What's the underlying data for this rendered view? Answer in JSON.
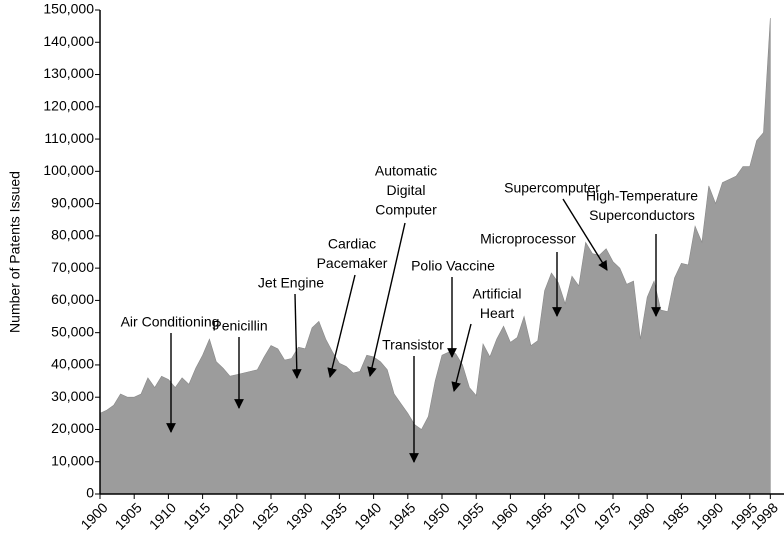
{
  "chart_data": {
    "type": "area",
    "y_label": "Number of Patents Issued",
    "color": "#9c9c9c",
    "x": [
      1900,
      1901,
      1902,
      1903,
      1904,
      1905,
      1906,
      1907,
      1908,
      1909,
      1910,
      1911,
      1912,
      1913,
      1914,
      1915,
      1916,
      1917,
      1918,
      1919,
      1920,
      1921,
      1922,
      1923,
      1924,
      1925,
      1926,
      1927,
      1928,
      1929,
      1930,
      1931,
      1932,
      1933,
      1934,
      1935,
      1936,
      1937,
      1938,
      1939,
      1940,
      1941,
      1942,
      1943,
      1944,
      1945,
      1946,
      1947,
      1948,
      1949,
      1950,
      1951,
      1952,
      1953,
      1954,
      1955,
      1956,
      1957,
      1958,
      1959,
      1960,
      1961,
      1962,
      1963,
      1964,
      1965,
      1966,
      1967,
      1968,
      1969,
      1970,
      1971,
      1972,
      1973,
      1974,
      1975,
      1976,
      1977,
      1978,
      1979,
      1980,
      1981,
      1982,
      1983,
      1984,
      1985,
      1986,
      1987,
      1988,
      1989,
      1990,
      1991,
      1992,
      1993,
      1994,
      1995,
      1996,
      1997,
      1998
    ],
    "values": [
      25000,
      26000,
      27500,
      31000,
      30000,
      30000,
      31000,
      36000,
      33000,
      36500,
      35500,
      33000,
      36000,
      34000,
      39000,
      43000,
      48000,
      41000,
      39000,
      36500,
      37000,
      37500,
      38000,
      38500,
      42500,
      46000,
      45000,
      41500,
      42000,
      45500,
      45000,
      51500,
      53500,
      48000,
      44000,
      40500,
      39500,
      37500,
      38000,
      43000,
      42500,
      41000,
      38500,
      31000,
      28000,
      25000,
      21500,
      20000,
      24000,
      35000,
      43000,
      44000,
      43500,
      40000,
      33000,
      30500,
      46500,
      42500,
      48000,
      52000,
      47000,
      48500,
      55000,
      46000,
      47500,
      63000,
      68500,
      65500,
      59000,
      67500,
      64500,
      78000,
      74500,
      74000,
      76000,
      72000,
      70000,
      65000,
      66000,
      48000,
      61000,
      66000,
      57000,
      56500,
      67000,
      71500,
      71000,
      83000,
      78000,
      95500,
      90000,
      96500,
      97500,
      98500,
      101500,
      101500,
      109500,
      112000,
      147500
    ],
    "xlim": [
      1900,
      2000
    ],
    "xticks": [
      1900,
      1905,
      1910,
      1915,
      1920,
      1925,
      1930,
      1935,
      1940,
      1945,
      1950,
      1955,
      1960,
      1965,
      1970,
      1975,
      1980,
      1985,
      1990,
      1995,
      1998
    ],
    "ylim": [
      0,
      150000
    ],
    "yticks": [
      0,
      {
        "value": 10000,
        "label": "10,000"
      },
      {
        "value": 20000,
        "label": "20,000"
      },
      {
        "value": 30000,
        "label": "30,000"
      },
      {
        "value": 40000,
        "label": "40,000"
      },
      {
        "value": 50000,
        "label": "50,000"
      },
      {
        "value": 60000,
        "label": "60,000"
      },
      {
        "value": 70000,
        "label": "70,000"
      },
      {
        "value": 80000,
        "label": "80,000"
      },
      {
        "value": 90000,
        "label": "90,000"
      },
      {
        "value": 100000,
        "label": "100,000"
      },
      {
        "value": 110000,
        "label": "110,000"
      },
      {
        "value": 120000,
        "label": "120,000"
      },
      {
        "value": 130000,
        "label": "130,000"
      },
      {
        "value": 140000,
        "label": "140,000"
      },
      {
        "value": 150000,
        "label": "150,000"
      }
    ],
    "annotations": [
      [
        "Air Conditioning"
      ],
      [
        "Penicillin"
      ],
      [
        "Jet Engine"
      ],
      [
        "Cardiac",
        "Pacemaker"
      ],
      [
        "Automatic",
        "Digital",
        "Computer"
      ],
      [
        "Transistor"
      ],
      [
        "Polio Vaccine"
      ],
      [
        "Artificial",
        "Heart"
      ],
      [
        "Microprocessor"
      ],
      [
        "Supercomputer"
      ],
      [
        "High-Temperature",
        "Superconductors"
      ]
    ]
  }
}
